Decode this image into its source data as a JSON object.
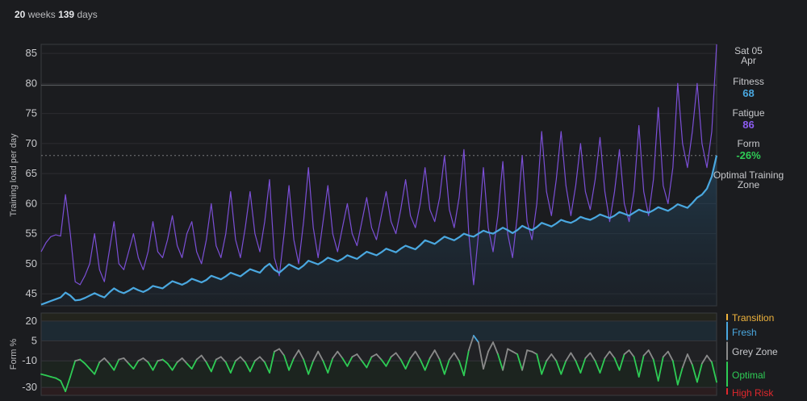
{
  "header": {
    "weeks_num": "20",
    "weeks_unit": "weeks",
    "days_num": "139",
    "days_unit": "days"
  },
  "sidebar": {
    "date_line1": "Sat 05",
    "date_line2": "Apr",
    "fitness_label": "Fitness",
    "fitness_value": "68",
    "fatigue_label": "Fatigue",
    "fatigue_value": "86",
    "form_label": "Form",
    "form_value": "-26%",
    "optimal_line1": "Optimal Training",
    "optimal_line2": "Zone"
  },
  "zones": {
    "transition": "Transition",
    "fresh": "Fresh",
    "grey": "Grey Zone",
    "optimal": "Optimal",
    "high_risk": "High Risk"
  },
  "colors": {
    "fitness": "#4aa8e0",
    "fatigue": "#7b4fd6",
    "form_optimal": "#2ecc55",
    "form_grey": "#8a8a8a",
    "form_fresh": "#4aa8e0",
    "form_high_risk": "#e0282d",
    "transition": "#f0b43c",
    "fresh_label": "#4aa8e0",
    "optimal_label": "#2ecc55",
    "high_risk_label": "#e0282d"
  },
  "chart_data": [
    {
      "type": "line",
      "ylabel": "Training load per day",
      "xlabel": "",
      "ylim": [
        43,
        86.5
      ],
      "yticks": [
        45,
        50,
        55,
        60,
        65,
        70,
        75,
        80,
        85
      ],
      "x": [
        0,
        1,
        2,
        3,
        4,
        5,
        6,
        7,
        8,
        9,
        10,
        11,
        12,
        13,
        14,
        15,
        16,
        17,
        18,
        19,
        20,
        21,
        22,
        23,
        24,
        25,
        26,
        27,
        28,
        29,
        30,
        31,
        32,
        33,
        34,
        35,
        36,
        37,
        38,
        39,
        40,
        41,
        42,
        43,
        44,
        45,
        46,
        47,
        48,
        49,
        50,
        51,
        52,
        53,
        54,
        55,
        56,
        57,
        58,
        59,
        60,
        61,
        62,
        63,
        64,
        65,
        66,
        67,
        68,
        69,
        70,
        71,
        72,
        73,
        74,
        75,
        76,
        77,
        78,
        79,
        80,
        81,
        82,
        83,
        84,
        85,
        86,
        87,
        88,
        89,
        90,
        91,
        92,
        93,
        94,
        95,
        96,
        97,
        98,
        99,
        100,
        101,
        102,
        103,
        104,
        105,
        106,
        107,
        108,
        109,
        110,
        111,
        112,
        113,
        114,
        115,
        116,
        117,
        118,
        119,
        120,
        121,
        122,
        123,
        124,
        125,
        126,
        127,
        128,
        129,
        130,
        131,
        132,
        133,
        134,
        135,
        136,
        137,
        138,
        139
      ],
      "series": [
        {
          "name": "Fitness",
          "values": [
            43.2,
            43.5,
            43.8,
            44.1,
            44.4,
            45.2,
            44.7,
            43.9,
            44.0,
            44.3,
            44.7,
            45.1,
            44.7,
            44.4,
            45.2,
            45.9,
            45.4,
            45.1,
            45.5,
            46.0,
            45.6,
            45.3,
            45.7,
            46.3,
            46.1,
            45.9,
            46.5,
            47.1,
            46.8,
            46.5,
            46.9,
            47.5,
            47.2,
            46.9,
            47.3,
            48.0,
            47.7,
            47.4,
            47.9,
            48.5,
            48.2,
            47.9,
            48.5,
            49.1,
            48.8,
            48.5,
            49.4,
            50.0,
            49.0,
            48.5,
            49.2,
            49.9,
            49.5,
            49.1,
            49.7,
            50.5,
            50.2,
            49.9,
            50.4,
            51.0,
            50.7,
            50.4,
            50.8,
            51.4,
            51.1,
            50.8,
            51.4,
            52.0,
            51.7,
            51.4,
            51.9,
            52.5,
            52.2,
            51.9,
            52.5,
            53.0,
            52.7,
            52.4,
            53.1,
            53.9,
            53.6,
            53.3,
            53.9,
            54.5,
            54.2,
            53.9,
            54.4,
            55.0,
            54.7,
            54.5,
            55.0,
            55.5,
            55.2,
            55.0,
            55.5,
            56.0,
            55.6,
            55.1,
            55.6,
            56.3,
            55.9,
            55.6,
            56.1,
            56.8,
            56.5,
            56.2,
            56.7,
            57.3,
            57.0,
            56.8,
            57.2,
            57.8,
            57.5,
            57.3,
            57.7,
            58.2,
            57.9,
            57.6,
            58.0,
            58.6,
            58.3,
            58.0,
            58.5,
            59.0,
            58.7,
            58.5,
            58.9,
            59.4,
            59.1,
            58.8,
            59.3,
            59.9,
            59.6,
            59.3,
            60.1,
            61.0,
            61.5,
            62.5,
            64.5,
            68.0
          ]
        },
        {
          "name": "Fatigue",
          "values": [
            52,
            53.5,
            54.5,
            54.8,
            54.6,
            61.5,
            55,
            47,
            46.5,
            48,
            50,
            55,
            49,
            47,
            52,
            57,
            50,
            49,
            52,
            55,
            51,
            49,
            52,
            57,
            52,
            51,
            54,
            58,
            53,
            51,
            55,
            57,
            52,
            50,
            54,
            60,
            53,
            51,
            55,
            62,
            54,
            51,
            56,
            62,
            55,
            52,
            57,
            64,
            51,
            48,
            55,
            63,
            54,
            50,
            57,
            66,
            56,
            51,
            57,
            63,
            55,
            52,
            56,
            60,
            55,
            53,
            57,
            61,
            56,
            54,
            58,
            62,
            57,
            55,
            59,
            64,
            58,
            56,
            60,
            66,
            59,
            57,
            61,
            68,
            59,
            56,
            61,
            69,
            55,
            46.5,
            55,
            66,
            56,
            52,
            58,
            67,
            55,
            51,
            58,
            68,
            57,
            54,
            60,
            72,
            62,
            58,
            64,
            72,
            63,
            58,
            63,
            70,
            62,
            59,
            64,
            71,
            62,
            57,
            62,
            69,
            60,
            57,
            62,
            73,
            62,
            58,
            64,
            76,
            63,
            60,
            66,
            80,
            70,
            66,
            72,
            80,
            70,
            66,
            72,
            86.5
          ]
        }
      ]
    },
    {
      "type": "area",
      "ylabel": "Form %",
      "xlabel": "",
      "ylim": [
        -36,
        26
      ],
      "yticks": [
        20,
        5,
        -10,
        -30
      ],
      "zones": [
        {
          "name": "Transition",
          "from": 20,
          "to": 26
        },
        {
          "name": "Fresh",
          "from": 5,
          "to": 20
        },
        {
          "name": "Grey Zone",
          "from": -10,
          "to": 5
        },
        {
          "name": "Optimal",
          "from": -30,
          "to": -10
        },
        {
          "name": "High Risk",
          "from": -36,
          "to": -30
        }
      ],
      "x": [
        0,
        1,
        2,
        3,
        4,
        5,
        6,
        7,
        8,
        9,
        10,
        11,
        12,
        13,
        14,
        15,
        16,
        17,
        18,
        19,
        20,
        21,
        22,
        23,
        24,
        25,
        26,
        27,
        28,
        29,
        30,
        31,
        32,
        33,
        34,
        35,
        36,
        37,
        38,
        39,
        40,
        41,
        42,
        43,
        44,
        45,
        46,
        47,
        48,
        49,
        50,
        51,
        52,
        53,
        54,
        55,
        56,
        57,
        58,
        59,
        60,
        61,
        62,
        63,
        64,
        65,
        66,
        67,
        68,
        69,
        70,
        71,
        72,
        73,
        74,
        75,
        76,
        77,
        78,
        79,
        80,
        81,
        82,
        83,
        84,
        85,
        86,
        87,
        88,
        89,
        90,
        91,
        92,
        93,
        94,
        95,
        96,
        97,
        98,
        99,
        100,
        101,
        102,
        103,
        104,
        105,
        106,
        107,
        108,
        109,
        110,
        111,
        112,
        113,
        114,
        115,
        116,
        117,
        118,
        119,
        120,
        121,
        122,
        123,
        124,
        125,
        126,
        127,
        128,
        129,
        130,
        131,
        132,
        133,
        134,
        135,
        136,
        137,
        138,
        139
      ],
      "series": [
        {
          "name": "Form",
          "values": [
            -20,
            -21,
            -22,
            -23,
            -25,
            -33,
            -22,
            -10,
            -9,
            -12,
            -16,
            -20,
            -11,
            -8,
            -12,
            -17,
            -9,
            -8,
            -12,
            -16,
            -10,
            -8,
            -11,
            -17,
            -10,
            -9,
            -12,
            -17,
            -11,
            -8,
            -12,
            -16,
            -9,
            -6,
            -11,
            -18,
            -9,
            -7,
            -11,
            -19,
            -10,
            -7,
            -11,
            -18,
            -10,
            -7,
            -11,
            -19,
            -3,
            -1,
            -6,
            -17,
            -8,
            -2,
            -9,
            -20,
            -10,
            -3,
            -10,
            -19,
            -8,
            -3,
            -8,
            -14,
            -7,
            -5,
            -10,
            -15,
            -7,
            -5,
            -9,
            -14,
            -7,
            -4,
            -9,
            -16,
            -8,
            -3,
            -9,
            -17,
            -8,
            -2,
            -9,
            -20,
            -9,
            -4,
            -10,
            -21,
            -2,
            9,
            4,
            -16,
            -3,
            4,
            -5,
            -17,
            -1,
            -3,
            -5,
            -17,
            -2,
            -3,
            -5,
            -20,
            -10,
            -5,
            -10,
            -20,
            -10,
            -4,
            -10,
            -19,
            -8,
            -4,
            -10,
            -19,
            -8,
            -3,
            -8,
            -17,
            -5,
            -2,
            -7,
            -22,
            -6,
            -2,
            -9,
            -25,
            -7,
            -3,
            -10,
            -28,
            -15,
            -5,
            -13,
            -26,
            -12,
            -6,
            -11,
            -26
          ]
        }
      ]
    }
  ]
}
